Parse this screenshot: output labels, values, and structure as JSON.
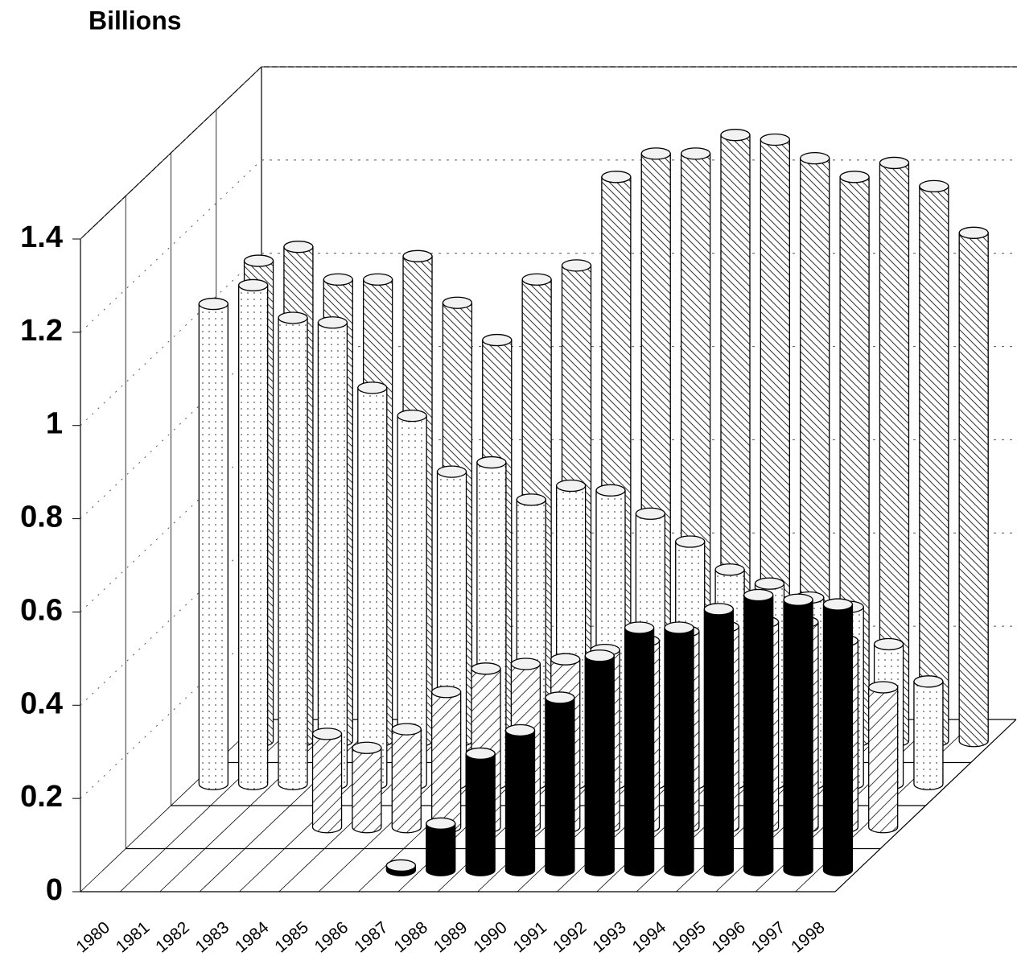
{
  "chart_data": {
    "type": "bar3d",
    "y_label": "Billions",
    "categories": [
      "1980",
      "1981",
      "1982",
      "1983",
      "1984",
      "1985",
      "1986",
      "1987",
      "1988",
      "1989",
      "1990",
      "1991",
      "1992",
      "1993",
      "1994",
      "1995",
      "1996",
      "1997",
      "1998"
    ],
    "series": [
      {
        "color": "#000000",
        "pattern": "solid",
        "values": [
          null,
          null,
          null,
          null,
          null,
          null,
          null,
          0.01,
          0.1,
          0.25,
          0.3,
          0.37,
          0.46,
          0.52,
          0.52,
          0.56,
          0.59,
          0.58,
          0.57
        ]
      },
      {
        "color": "#000000",
        "pattern": "hatch-up",
        "values": [
          null,
          null,
          null,
          null,
          0.2,
          0.17,
          0.21,
          0.29,
          0.34,
          0.35,
          0.36,
          0.38,
          0.4,
          0.42,
          0.43,
          0.44,
          0.44,
          0.4,
          0.3
        ]
      },
      {
        "color": "#000000",
        "pattern": "dots",
        "values": [
          1.03,
          1.07,
          1.0,
          0.99,
          0.85,
          0.79,
          0.67,
          0.69,
          0.61,
          0.64,
          0.63,
          0.58,
          0.52,
          0.46,
          0.43,
          0.4,
          0.38,
          0.3,
          0.22
        ]
      },
      {
        "color": "#000000",
        "pattern": "hatch-down",
        "values": [
          1.03,
          1.06,
          0.99,
          0.99,
          1.04,
          0.94,
          0.86,
          0.99,
          1.02,
          1.21,
          1.26,
          1.26,
          1.3,
          1.29,
          1.25,
          1.21,
          1.24,
          1.19,
          1.09
        ]
      }
    ],
    "ylim": [
      0,
      1.4
    ],
    "yticks": [
      0,
      0.2,
      0.4,
      0.6,
      0.8,
      1,
      1.2,
      1.4
    ],
    "grid": true
  }
}
